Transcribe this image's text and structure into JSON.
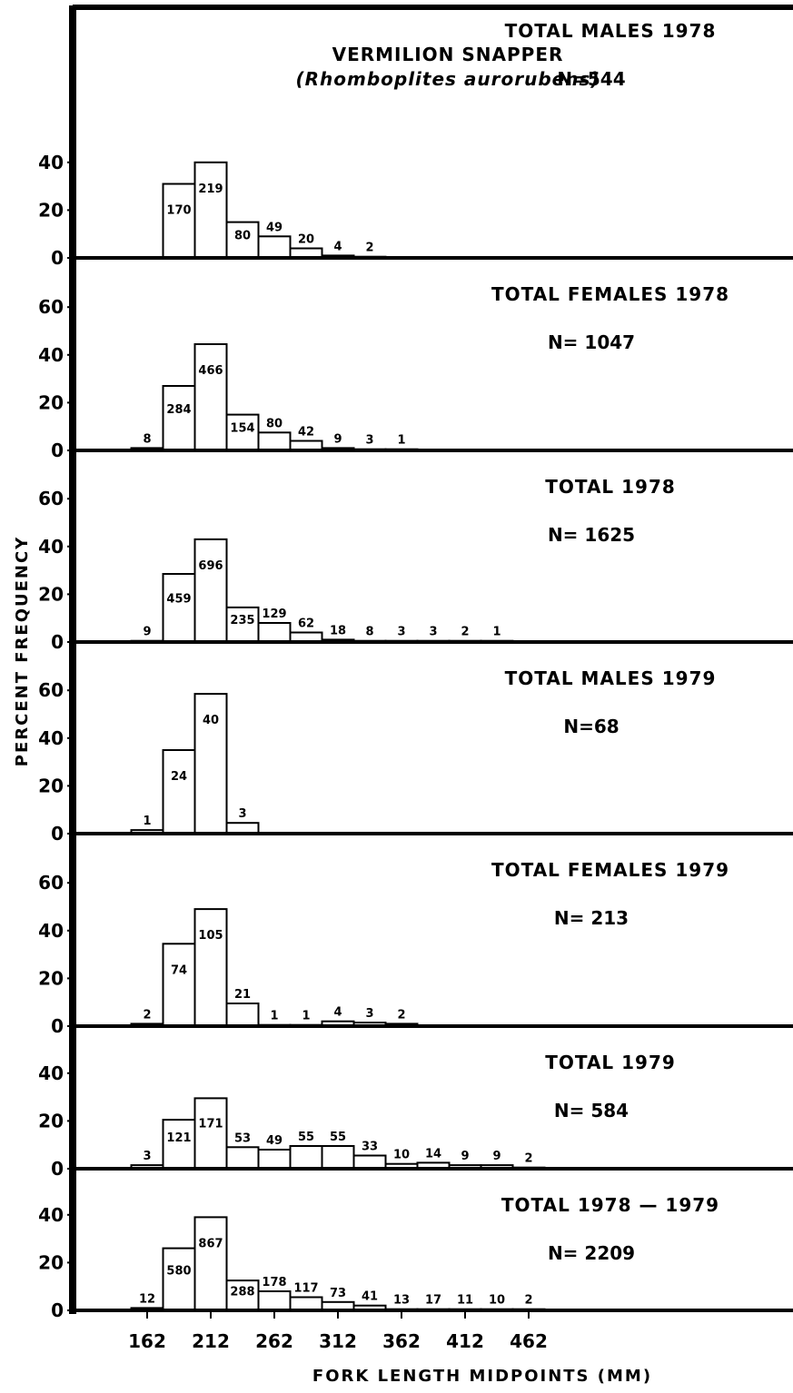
{
  "figure": {
    "title": "VERMILION SNAPPER",
    "subtitle": "(Rhomboplites aurorubens)",
    "xlabel": "FORK LENGTH MIDPOINTS (MM)",
    "ylabel": "PERCENT FREQUENCY",
    "x_ticks": [
      "162",
      "212",
      "262",
      "312",
      "362",
      "412",
      "462"
    ]
  },
  "chart_data": [
    {
      "type": "bar",
      "label": "TOTAL MALES 1978",
      "n_text": "N=544",
      "categories": [
        162,
        187,
        212,
        237,
        262,
        287,
        312,
        337
      ],
      "values": [
        0,
        31,
        40,
        15,
        9,
        4,
        1,
        0.5
      ],
      "count_labels": [
        "",
        "170",
        "219",
        "80",
        "49",
        "20",
        "4",
        "2"
      ],
      "ylim": [
        0,
        50
      ],
      "yticks": [
        0,
        20,
        40
      ]
    },
    {
      "type": "bar",
      "label": "TOTAL FEMALES 1978",
      "n_text": "N= 1047",
      "categories": [
        162,
        187,
        212,
        237,
        262,
        287,
        312,
        337,
        362
      ],
      "values": [
        1,
        27,
        44.5,
        15,
        7.5,
        4,
        1,
        0.5,
        0.5
      ],
      "count_labels": [
        "8",
        "284",
        "466",
        "154",
        "80",
        "42",
        "9",
        "3",
        "1"
      ],
      "ylim": [
        0,
        70
      ],
      "yticks": [
        0,
        20,
        40,
        60
      ]
    },
    {
      "type": "bar",
      "label": "TOTAL 1978",
      "n_text": "N= 1625",
      "categories": [
        162,
        187,
        212,
        237,
        262,
        287,
        312,
        337,
        362,
        387,
        412,
        437
      ],
      "values": [
        0.5,
        28.5,
        43,
        14.5,
        8,
        4,
        1,
        0.5,
        0.5,
        0.5,
        0.5,
        0.5
      ],
      "count_labels": [
        "9",
        "459",
        "696",
        "235",
        "129",
        "62",
        "18",
        "8",
        "3",
        "3",
        "2",
        "1"
      ],
      "ylim": [
        0,
        70
      ],
      "yticks": [
        0,
        20,
        40,
        60
      ]
    },
    {
      "type": "bar",
      "label": "TOTAL MALES 1979",
      "n_text": "N=68",
      "categories": [
        162,
        187,
        212,
        237
      ],
      "values": [
        1.5,
        35,
        58.5,
        4.5
      ],
      "count_labels": [
        "1",
        "24",
        "40",
        "3"
      ],
      "ylim": [
        0,
        70
      ],
      "yticks": [
        0,
        20,
        40,
        60
      ]
    },
    {
      "type": "bar",
      "label": "TOTAL FEMALES 1979",
      "n_text": "N= 213",
      "categories": [
        162,
        187,
        212,
        237,
        262,
        287,
        312,
        337,
        362
      ],
      "values": [
        1,
        34.5,
        49,
        9.5,
        0.5,
        0.5,
        2,
        1.5,
        1
      ],
      "count_labels": [
        "2",
        "74",
        "105",
        "21",
        "1",
        "1",
        "4",
        "3",
        "2"
      ],
      "ylim": [
        0,
        70
      ],
      "yticks": [
        0,
        20,
        40,
        60
      ]
    },
    {
      "type": "bar",
      "label": "TOTAL 1979",
      "n_text": "N= 584",
      "categories": [
        162,
        187,
        212,
        237,
        262,
        287,
        312,
        337,
        362,
        387,
        412,
        437,
        462
      ],
      "values": [
        1.5,
        20.5,
        29.5,
        9,
        8,
        9.5,
        9.5,
        5.5,
        2,
        2.5,
        1.5,
        1.5,
        0.5
      ],
      "count_labels": [
        "3",
        "121",
        "171",
        "53",
        "49",
        "55",
        "55",
        "33",
        "10",
        "14",
        "9",
        "9",
        "2"
      ],
      "ylim": [
        0,
        50
      ],
      "yticks": [
        0,
        20,
        40
      ]
    },
    {
      "type": "bar",
      "label": "TOTAL 1978 — 1979",
      "n_text": "N= 2209",
      "categories": [
        162,
        187,
        212,
        237,
        262,
        287,
        312,
        337,
        362,
        387,
        412,
        437,
        462
      ],
      "values": [
        1,
        26,
        39,
        12.5,
        8,
        5.5,
        3.5,
        2,
        0.5,
        0.5,
        0.5,
        0.5,
        0.5
      ],
      "count_labels": [
        "12",
        "580",
        "867",
        "288",
        "178",
        "117",
        "73",
        "41",
        "13",
        "17",
        "11",
        "10",
        "2"
      ],
      "ylim": [
        0,
        50
      ],
      "yticks": [
        0,
        20,
        40
      ]
    }
  ]
}
